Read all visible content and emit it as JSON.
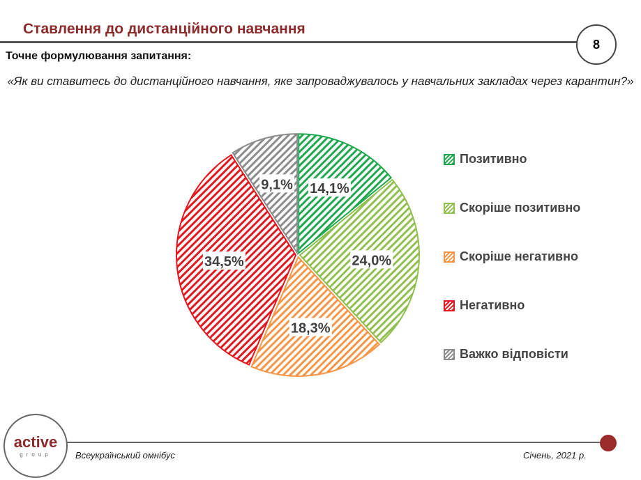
{
  "header": {
    "title": "Ставлення до дистанційного навчання",
    "page_number": "8"
  },
  "question": {
    "label": "Точне формулювання запитання:",
    "text": "«Як ви ставитесь до дистанційного навчання, яке запроваджувалось у навчальних закладах через карантин?»"
  },
  "footer": {
    "logo_text": "active",
    "logo_sub": "group",
    "left": "Всеукраїнський омнібус",
    "right": "Січень, 2021 р."
  },
  "chart_data": {
    "type": "pie",
    "categories": [
      "Позитивно",
      "Скоріше позитивно",
      "Скоріше негативно",
      "Негативно",
      "Важко відповісти"
    ],
    "values": [
      14.1,
      24.0,
      18.3,
      34.5,
      9.1
    ],
    "labels": [
      "14,1%",
      "24,0%",
      "18,3%",
      "34,5%",
      "9,1%"
    ],
    "colors": [
      "#1fa84f",
      "#92c050",
      "#f79646",
      "#e3171e",
      "#8c8c8c"
    ],
    "fill": "diagonal hatch",
    "legend": "right"
  }
}
